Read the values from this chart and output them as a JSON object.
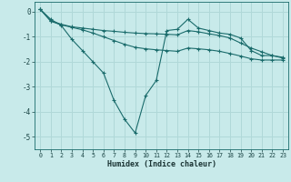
{
  "background_color": "#c8eaea",
  "grid_color": "#b0d8d8",
  "line_color": "#1a6b6b",
  "x_label": "Humidex (Indice chaleur)",
  "xlim": [
    -0.5,
    23.5
  ],
  "ylim": [
    -5.5,
    0.4
  ],
  "yticks": [
    0,
    -1,
    -2,
    -3,
    -4,
    -5
  ],
  "xticks": [
    0,
    1,
    2,
    3,
    4,
    5,
    6,
    7,
    8,
    9,
    10,
    11,
    12,
    13,
    14,
    15,
    16,
    17,
    18,
    19,
    20,
    21,
    22,
    23
  ],
  "series1_x": [
    0,
    1,
    2,
    3,
    4,
    5,
    6,
    7,
    8,
    9,
    10,
    11,
    12,
    13,
    14,
    15,
    16,
    17,
    18,
    19,
    20,
    21,
    22,
    23
  ],
  "series1_y": [
    0.1,
    -0.3,
    -0.55,
    -1.1,
    -1.55,
    -2.0,
    -2.45,
    -3.55,
    -4.3,
    -4.85,
    -3.35,
    -2.75,
    -0.75,
    -0.7,
    -0.3,
    -0.65,
    -0.75,
    -0.85,
    -0.9,
    -1.05,
    -1.55,
    -1.75,
    -1.75,
    -1.85
  ],
  "series2_x": [
    0,
    1,
    2,
    3,
    4,
    5,
    6,
    7,
    8,
    9,
    10,
    11,
    12,
    13,
    14,
    15,
    16,
    17,
    18,
    19,
    20,
    21,
    22,
    23
  ],
  "series2_y": [
    0.1,
    -0.35,
    -0.5,
    -0.6,
    -0.65,
    -0.7,
    -0.75,
    -0.78,
    -0.82,
    -0.85,
    -0.87,
    -0.88,
    -0.9,
    -0.92,
    -0.75,
    -0.8,
    -0.88,
    -0.95,
    -1.05,
    -1.25,
    -1.45,
    -1.6,
    -1.75,
    -1.82
  ],
  "series3_x": [
    0,
    1,
    2,
    3,
    4,
    5,
    6,
    7,
    8,
    9,
    10,
    11,
    12,
    13,
    14,
    15,
    16,
    17,
    18,
    19,
    20,
    21,
    22,
    23
  ],
  "series3_y": [
    0.1,
    -0.38,
    -0.52,
    -0.62,
    -0.72,
    -0.85,
    -1.0,
    -1.15,
    -1.3,
    -1.42,
    -1.48,
    -1.52,
    -1.55,
    -1.58,
    -1.45,
    -1.48,
    -1.52,
    -1.58,
    -1.67,
    -1.77,
    -1.88,
    -1.93,
    -1.93,
    -1.93
  ]
}
